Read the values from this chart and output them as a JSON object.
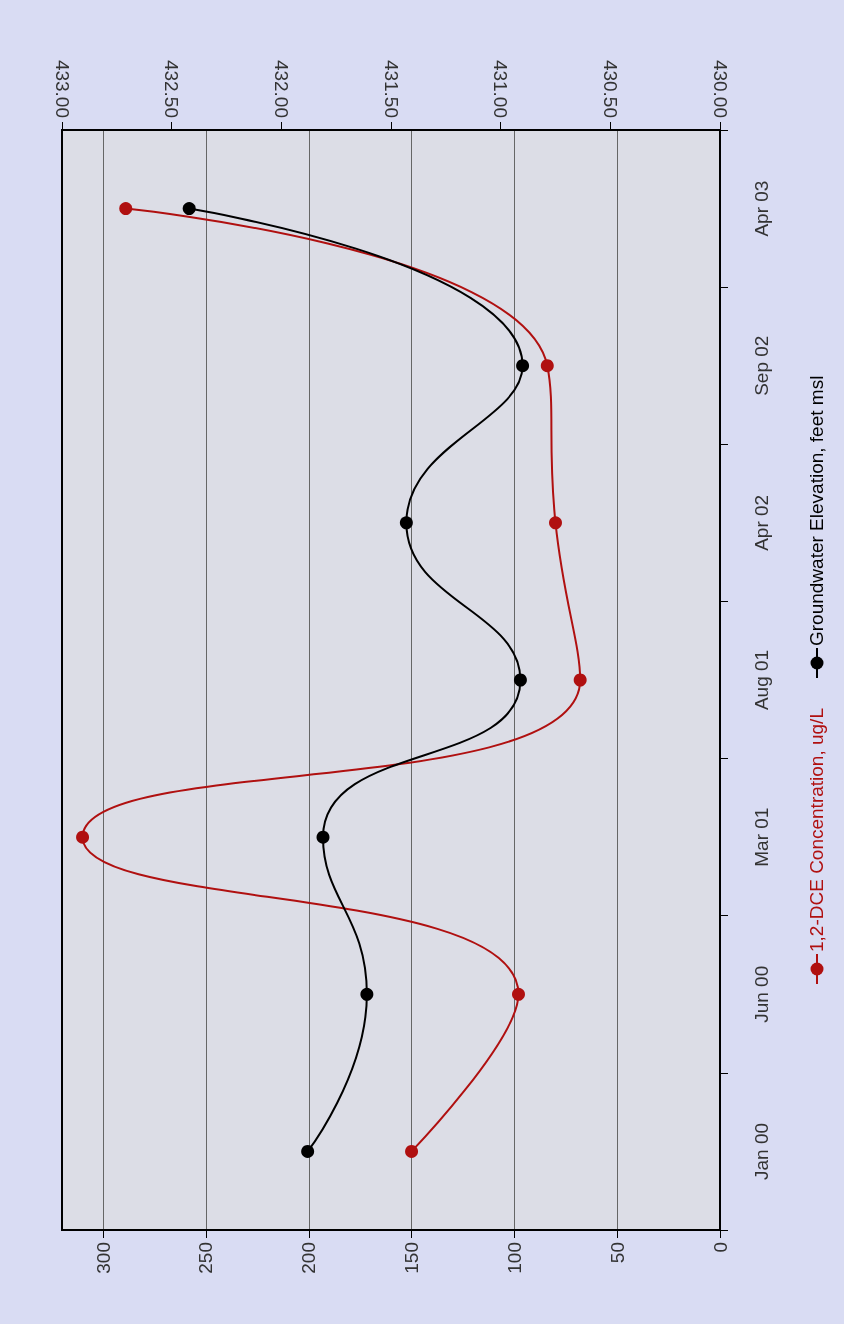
{
  "chart_data": {
    "type": "line",
    "orientation": "horizontal",
    "categories": [
      "Apr 03",
      "Sep 02",
      "Apr 02",
      "Aug 01",
      "Mar 01",
      "Jun 00",
      "Jan 00"
    ],
    "series": [
      {
        "name": "1,2-DCE Concentration, ug/L",
        "color": "#b01010",
        "values": [
          289,
          84,
          80,
          68,
          310,
          98,
          150
        ]
      },
      {
        "name": "Groundwater Elevation, feet msl",
        "color": "#000000",
        "axis": "x2",
        "values": [
          432.42,
          430.9,
          431.43,
          430.91,
          431.81,
          431.61,
          431.88
        ]
      }
    ],
    "xlim": [
      320,
      0
    ],
    "xticks": [
      300,
      250,
      200,
      150,
      100,
      50,
      0
    ],
    "x2lim": [
      433,
      430
    ],
    "x2ticks": [
      {
        "value": 433,
        "label": "433.00"
      },
      {
        "value": 432.5,
        "label": "432.50"
      },
      {
        "value": 432,
        "label": "432.00"
      },
      {
        "value": 431.5,
        "label": "431.50"
      },
      {
        "value": 431,
        "label": "431.00"
      },
      {
        "value": 430.5,
        "label": "430.50"
      },
      {
        "value": 430,
        "label": "430.00"
      }
    ],
    "grid": "x",
    "legend": "right",
    "marker": "circle",
    "line_style": "solid"
  }
}
